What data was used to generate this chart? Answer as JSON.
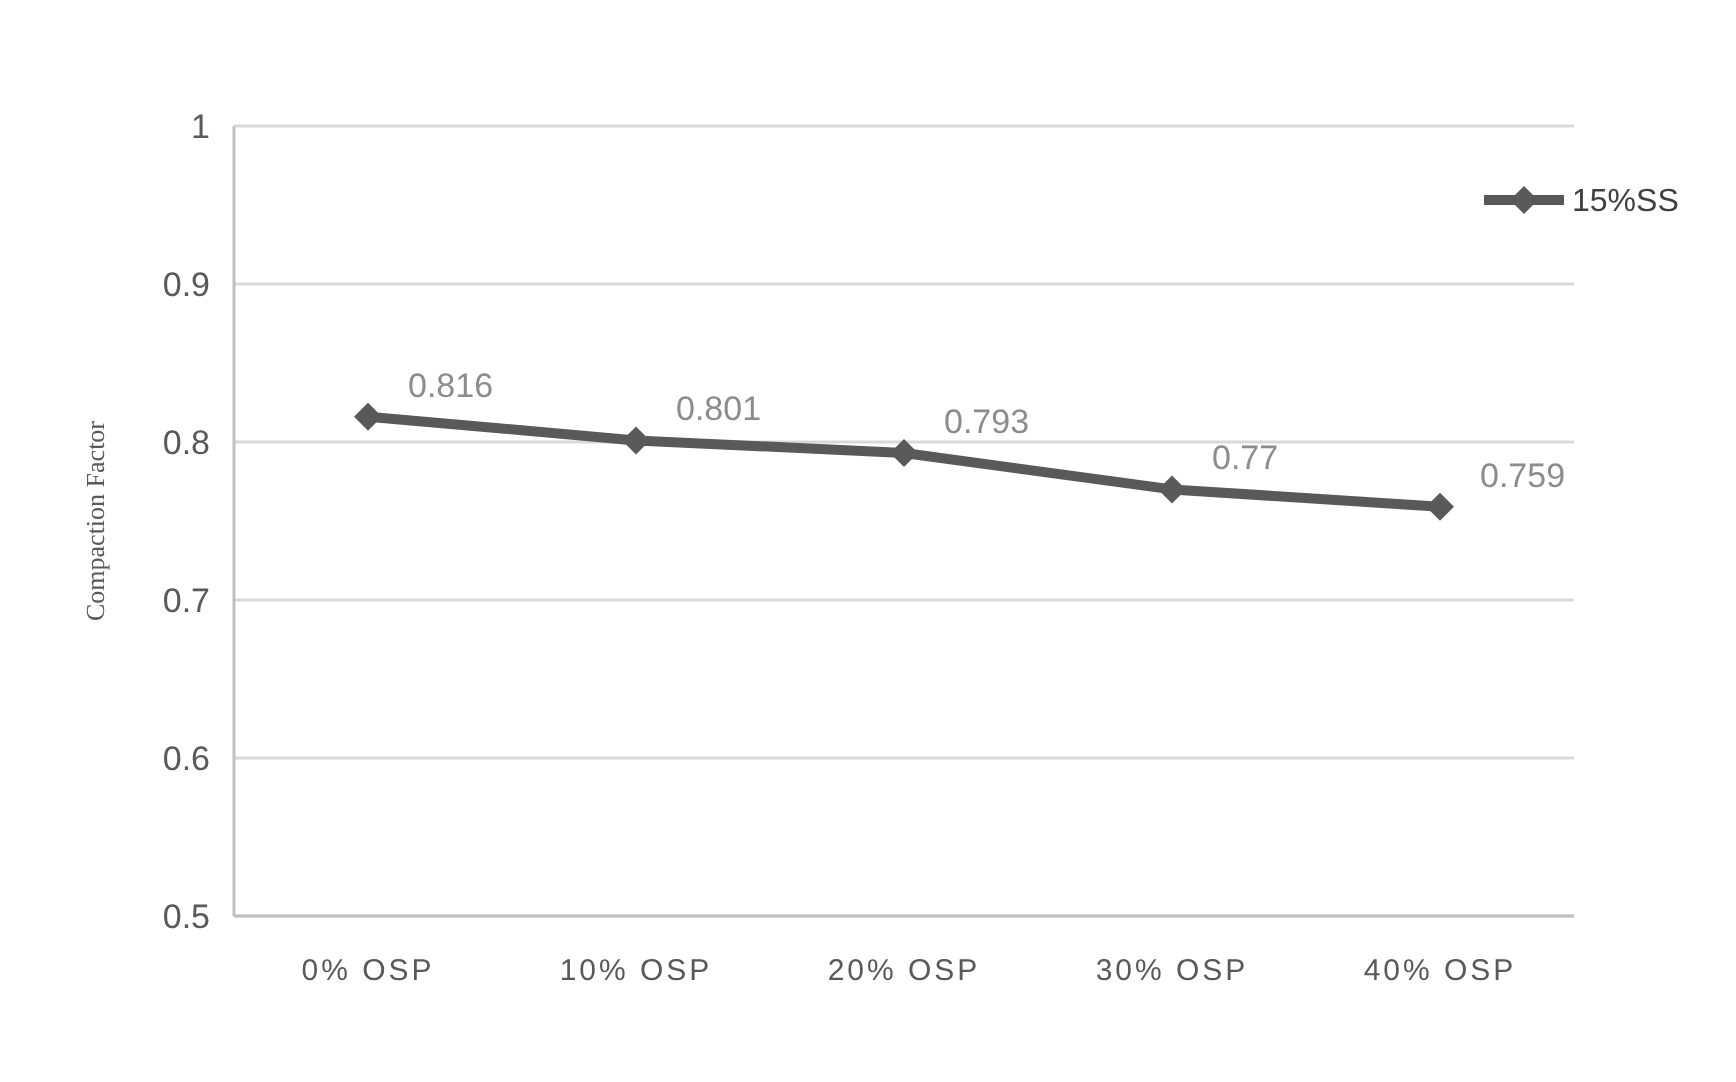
{
  "chart_data": {
    "type": "line",
    "ylabel": "Compaction Factor",
    "categories": [
      "0% OSP",
      "10% OSP",
      "20% OSP",
      "30% OSP",
      "40% OSP"
    ],
    "series": [
      {
        "name": "15%SS",
        "color": "#595959",
        "values": [
          0.816,
          0.801,
          0.793,
          0.77,
          0.759
        ]
      }
    ],
    "ylim": [
      0.5,
      1
    ],
    "yticks": [
      0.5,
      0.6,
      0.7,
      0.8,
      0.9,
      1
    ],
    "grid": "y",
    "legend": "top right",
    "marker": "diamond",
    "line_style": "solid",
    "data_labels": true
  }
}
